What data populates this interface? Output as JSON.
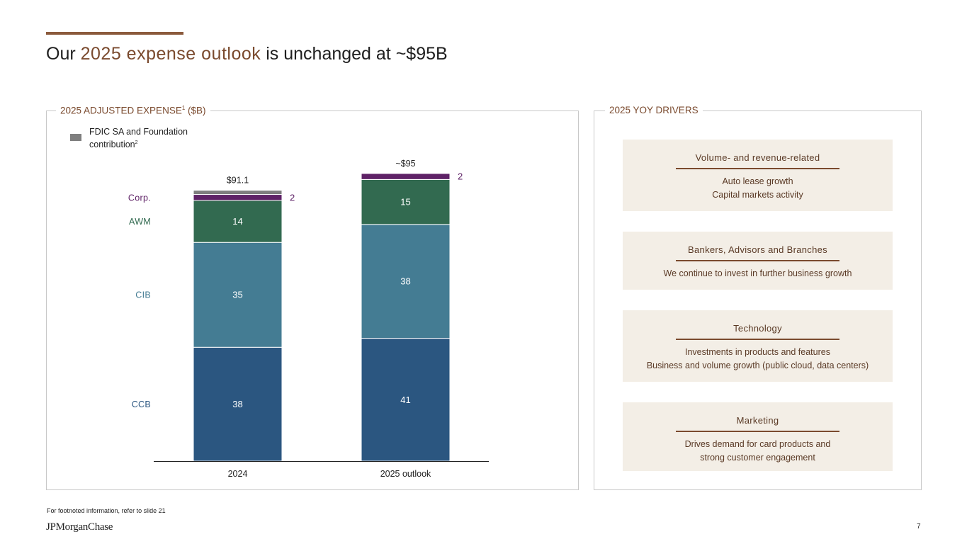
{
  "title": {
    "prefix": "Our ",
    "highlight": "2025 expense outlook",
    "suffix": " is unchanged at ~$95B"
  },
  "left_panel": {
    "label": "2025 ADJUSTED EXPENSE",
    "sup": "1",
    "label_suffix": " ($B)"
  },
  "legend": {
    "text": "FDIC SA and Foundation contribution",
    "sup": "2",
    "color": "#7f7f7f"
  },
  "chart_data": {
    "type": "bar",
    "stacked": true,
    "categories": [
      "2024",
      "2025 outlook"
    ],
    "totals": [
      "$91.1",
      "~$95"
    ],
    "series": [
      {
        "name": "CCB",
        "values": [
          38,
          41
        ],
        "labels": [
          "38",
          "41"
        ],
        "color": "#2b5680",
        "label_color": "#2b5680"
      },
      {
        "name": "CIB",
        "values": [
          35,
          38
        ],
        "labels": [
          "35",
          "38"
        ],
        "color": "#447c93",
        "label_color": "#447c93"
      },
      {
        "name": "AWM",
        "values": [
          14,
          15
        ],
        "labels": [
          "14",
          "15"
        ],
        "color": "#326a50",
        "label_color": "#326a50"
      },
      {
        "name": "Corp.",
        "values": [
          2,
          2
        ],
        "labels": [
          "2",
          "2"
        ],
        "color": "#5e2166",
        "label_color": "#5e2166"
      },
      {
        "name": "FDIC SA and Foundation contribution",
        "values": [
          1.4,
          0
        ],
        "labels": [
          "",
          ""
        ],
        "color": "#7f7f7f",
        "label_color": "#7f7f7f"
      }
    ],
    "ylim": [
      0,
      97
    ]
  },
  "right_panel": {
    "label": "2025 YOY DRIVERS"
  },
  "drivers": [
    {
      "title": "Volume- and revenue-related",
      "lines": [
        "Auto lease growth",
        "Capital markets activity"
      ]
    },
    {
      "title": "Bankers, Advisors and Branches",
      "lines": [
        "We continue to invest in further business growth"
      ]
    },
    {
      "title": "Technology",
      "lines": [
        "Investments in products and features",
        "Business and volume growth (public cloud, data centers)"
      ]
    },
    {
      "title": "Marketing",
      "lines": [
        "Drives demand for card products and",
        "strong customer engagement"
      ]
    }
  ],
  "footer": {
    "footnote": "For footnoted information, refer to slide 21",
    "logo": "JPMorganChase",
    "page": "7"
  }
}
